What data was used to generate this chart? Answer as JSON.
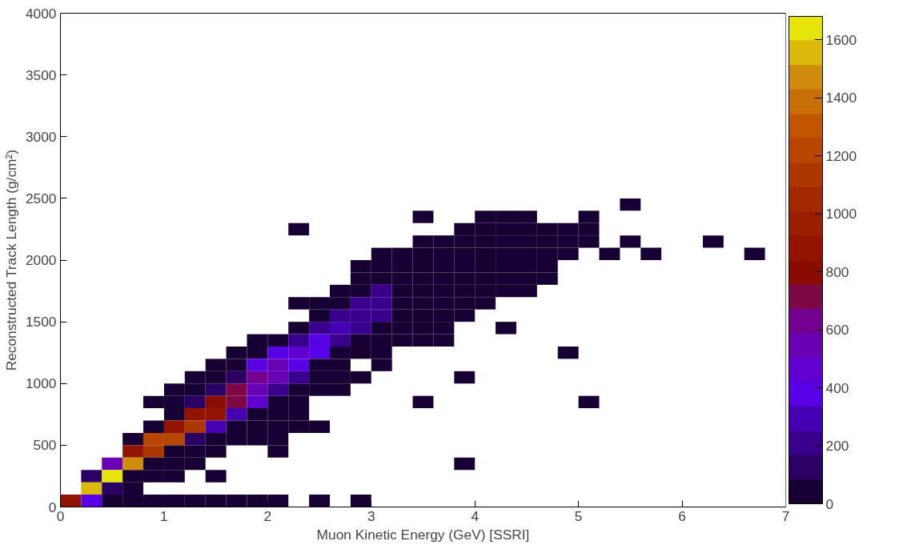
{
  "chart_data": {
    "type": "heatmap",
    "xlabel": "Muon Kinetic Energy (GeV) [SSRI]",
    "ylabel": "Reconstructed Track Length (g/cm²)",
    "x": [
      0.1,
      0.3,
      0.5,
      0.7,
      0.9,
      1.1,
      1.3,
      1.5,
      1.7,
      1.9,
      2.1,
      2.3,
      2.5,
      2.7,
      2.9,
      3.1,
      3.3,
      3.5,
      3.7,
      3.9,
      4.1,
      4.3,
      4.5,
      4.7,
      4.9,
      5.1,
      5.3,
      5.5,
      5.7,
      5.9,
      6.1,
      6.3,
      6.5,
      6.7,
      6.9
    ],
    "y": [
      2450,
      2350,
      2250,
      2150,
      2050,
      1950,
      1850,
      1750,
      1650,
      1550,
      1450,
      1350,
      1250,
      1150,
      1050,
      950,
      850,
      750,
      650,
      550,
      450,
      350,
      250,
      150,
      50
    ],
    "cells": [
      [
        null,
        null,
        null,
        null,
        null,
        null,
        null,
        null,
        null,
        null,
        null,
        null,
        null,
        null,
        null,
        null,
        null,
        null,
        null,
        null,
        null,
        null,
        null,
        null,
        null,
        null,
        null,
        40,
        null,
        null,
        null,
        null,
        null,
        null,
        null
      ],
      [
        null,
        null,
        null,
        null,
        null,
        null,
        null,
        null,
        null,
        null,
        null,
        null,
        null,
        null,
        null,
        null,
        null,
        40,
        null,
        null,
        40,
        40,
        40,
        null,
        null,
        40,
        null,
        null,
        null,
        null,
        null,
        null,
        null,
        null,
        null
      ],
      [
        null,
        null,
        null,
        null,
        null,
        null,
        null,
        null,
        null,
        null,
        null,
        40,
        null,
        null,
        null,
        null,
        null,
        null,
        null,
        40,
        40,
        40,
        40,
        40,
        40,
        40,
        null,
        null,
        null,
        null,
        null,
        null,
        null,
        null,
        null
      ],
      [
        null,
        null,
        null,
        null,
        null,
        null,
        null,
        null,
        null,
        null,
        null,
        null,
        null,
        null,
        null,
        null,
        null,
        40,
        40,
        40,
        40,
        40,
        40,
        40,
        40,
        40,
        null,
        40,
        null,
        null,
        null,
        40,
        null,
        null,
        null
      ],
      [
        null,
        null,
        null,
        null,
        null,
        null,
        null,
        null,
        null,
        null,
        null,
        null,
        null,
        null,
        null,
        40,
        40,
        40,
        40,
        40,
        40,
        40,
        40,
        40,
        40,
        null,
        40,
        null,
        40,
        null,
        null,
        null,
        null,
        40,
        null
      ],
      [
        null,
        null,
        null,
        null,
        null,
        null,
        null,
        null,
        null,
        null,
        null,
        null,
        null,
        null,
        40,
        40,
        40,
        40,
        40,
        40,
        40,
        40,
        40,
        40,
        null,
        null,
        null,
        null,
        null,
        null,
        null,
        null,
        null,
        null,
        null
      ],
      [
        null,
        null,
        null,
        null,
        null,
        null,
        null,
        null,
        null,
        null,
        null,
        null,
        null,
        null,
        40,
        40,
        40,
        40,
        40,
        40,
        40,
        40,
        40,
        40,
        null,
        null,
        null,
        null,
        null,
        null,
        null,
        null,
        null,
        null,
        null
      ],
      [
        null,
        null,
        null,
        null,
        null,
        null,
        null,
        null,
        null,
        null,
        null,
        null,
        null,
        40,
        40,
        180,
        40,
        40,
        40,
        40,
        40,
        40,
        40,
        null,
        null,
        null,
        null,
        null,
        null,
        null,
        null,
        null,
        null,
        null,
        null
      ],
      [
        null,
        null,
        null,
        null,
        null,
        null,
        null,
        null,
        null,
        null,
        null,
        40,
        40,
        40,
        180,
        180,
        40,
        40,
        40,
        40,
        40,
        null,
        null,
        null,
        null,
        null,
        null,
        null,
        null,
        null,
        null,
        null,
        null,
        null,
        null
      ],
      [
        null,
        null,
        null,
        null,
        null,
        null,
        null,
        null,
        null,
        null,
        null,
        null,
        40,
        250,
        200,
        200,
        40,
        40,
        40,
        40,
        null,
        null,
        null,
        null,
        null,
        null,
        null,
        null,
        null,
        null,
        null,
        null,
        null,
        null,
        null
      ],
      [
        null,
        null,
        null,
        null,
        null,
        null,
        null,
        null,
        null,
        null,
        null,
        40,
        200,
        300,
        200,
        40,
        40,
        40,
        40,
        null,
        null,
        40,
        null,
        null,
        null,
        null,
        null,
        null,
        null,
        null,
        null,
        null,
        null,
        null,
        null
      ],
      [
        null,
        null,
        null,
        null,
        null,
        null,
        null,
        null,
        null,
        40,
        40,
        200,
        380,
        200,
        40,
        40,
        40,
        40,
        40,
        null,
        null,
        null,
        null,
        null,
        null,
        null,
        null,
        null,
        null,
        null,
        null,
        null,
        null,
        null,
        null
      ],
      [
        null,
        null,
        null,
        null,
        null,
        null,
        null,
        null,
        40,
        40,
        400,
        420,
        340,
        40,
        40,
        40,
        null,
        null,
        null,
        null,
        null,
        null,
        null,
        null,
        40,
        null,
        null,
        null,
        null,
        null,
        null,
        null,
        null,
        null,
        null
      ],
      [
        null,
        null,
        null,
        null,
        null,
        null,
        null,
        40,
        40,
        370,
        560,
        380,
        40,
        40,
        null,
        40,
        null,
        null,
        null,
        null,
        null,
        null,
        null,
        null,
        null,
        null,
        null,
        null,
        null,
        null,
        null,
        null,
        null,
        null,
        null
      ],
      [
        null,
        null,
        null,
        null,
        null,
        null,
        40,
        40,
        150,
        650,
        560,
        180,
        40,
        40,
        40,
        null,
        null,
        null,
        null,
        40,
        null,
        null,
        null,
        null,
        null,
        null,
        null,
        null,
        null,
        null,
        null,
        null,
        null,
        null,
        null
      ],
      [
        null,
        null,
        null,
        null,
        null,
        40,
        40,
        150,
        700,
        580,
        200,
        40,
        40,
        40,
        null,
        null,
        null,
        null,
        null,
        null,
        null,
        null,
        null,
        null,
        null,
        null,
        null,
        null,
        null,
        null,
        null,
        null,
        null,
        null,
        null
      ],
      [
        null,
        null,
        null,
        null,
        40,
        40,
        150,
        800,
        720,
        420,
        40,
        40,
        null,
        null,
        null,
        null,
        null,
        40,
        null,
        null,
        null,
        null,
        null,
        null,
        null,
        40,
        null,
        null,
        null,
        null,
        null,
        null,
        null,
        null,
        null
      ],
      [
        null,
        null,
        null,
        null,
        null,
        40,
        920,
        920,
        330,
        40,
        40,
        40,
        null,
        null,
        null,
        null,
        null,
        null,
        null,
        null,
        null,
        null,
        null,
        null,
        null,
        null,
        null,
        null,
        null,
        null,
        null,
        null,
        null,
        null,
        null
      ],
      [
        null,
        null,
        null,
        null,
        40,
        920,
        1150,
        330,
        40,
        40,
        40,
        40,
        40,
        null,
        null,
        null,
        null,
        null,
        null,
        null,
        null,
        null,
        null,
        null,
        null,
        null,
        null,
        null,
        null,
        null,
        null,
        null,
        null,
        null,
        null
      ],
      [
        null,
        null,
        null,
        40,
        1250,
        1250,
        150,
        40,
        40,
        40,
        40,
        null,
        null,
        null,
        null,
        null,
        null,
        null,
        null,
        null,
        null,
        null,
        null,
        null,
        null,
        null,
        null,
        null,
        null,
        null,
        null,
        null,
        null,
        null,
        null
      ],
      [
        null,
        null,
        null,
        880,
        1100,
        40,
        40,
        40,
        null,
        null,
        40,
        null,
        null,
        null,
        null,
        null,
        null,
        null,
        null,
        null,
        null,
        null,
        null,
        null,
        null,
        null,
        null,
        null,
        null,
        null,
        null,
        null,
        null,
        null,
        null
      ],
      [
        null,
        null,
        580,
        1480,
        40,
        40,
        40,
        null,
        null,
        null,
        null,
        null,
        null,
        null,
        null,
        null,
        null,
        null,
        null,
        40,
        null,
        null,
        null,
        null,
        null,
        null,
        null,
        null,
        null,
        null,
        null,
        null,
        null,
        null,
        null
      ],
      [
        null,
        150,
        1650,
        40,
        40,
        40,
        null,
        40,
        null,
        null,
        null,
        null,
        null,
        null,
        null,
        null,
        null,
        null,
        null,
        null,
        null,
        null,
        null,
        null,
        null,
        null,
        null,
        null,
        null,
        null,
        null,
        null,
        null,
        null,
        null
      ],
      [
        null,
        1560,
        150,
        40,
        null,
        null,
        null,
        null,
        null,
        null,
        null,
        null,
        null,
        null,
        null,
        null,
        null,
        null,
        null,
        null,
        null,
        null,
        null,
        null,
        null,
        null,
        null,
        null,
        null,
        null,
        null,
        null,
        null,
        null,
        null
      ],
      [
        860,
        400,
        40,
        40,
        40,
        40,
        40,
        40,
        40,
        40,
        40,
        null,
        40,
        null,
        40,
        null,
        null,
        null,
        null,
        null,
        null,
        null,
        null,
        null,
        null,
        null,
        null,
        null,
        null,
        null,
        null,
        null,
        null,
        null,
        null
      ]
    ],
    "colors": [
      "#170033",
      "#2b0064",
      "#38008c",
      "#4500b4",
      "#5800e6",
      "#5f00d0",
      "#6a00b4",
      "#740090",
      "#7e0846",
      "#8a0c00",
      "#921400",
      "#9a1e00",
      "#a22800",
      "#ac3800",
      "#b84600",
      "#c25600",
      "#c87008",
      "#d08c0c",
      "#dcb80a",
      "#e6e40a"
    ],
    "xlim": [
      0,
      7
    ],
    "ylim": [
      0,
      4000
    ],
    "xticks": [
      0,
      1,
      2,
      3,
      4,
      5,
      6,
      7
    ],
    "yticks": [
      0,
      500,
      1000,
      1500,
      2000,
      2500,
      3000,
      3500,
      4000
    ],
    "clim": [
      0,
      1680
    ],
    "cticks": [
      0,
      200,
      400,
      600,
      800,
      1000,
      1200,
      1400,
      1600
    ],
    "grid": false
  }
}
